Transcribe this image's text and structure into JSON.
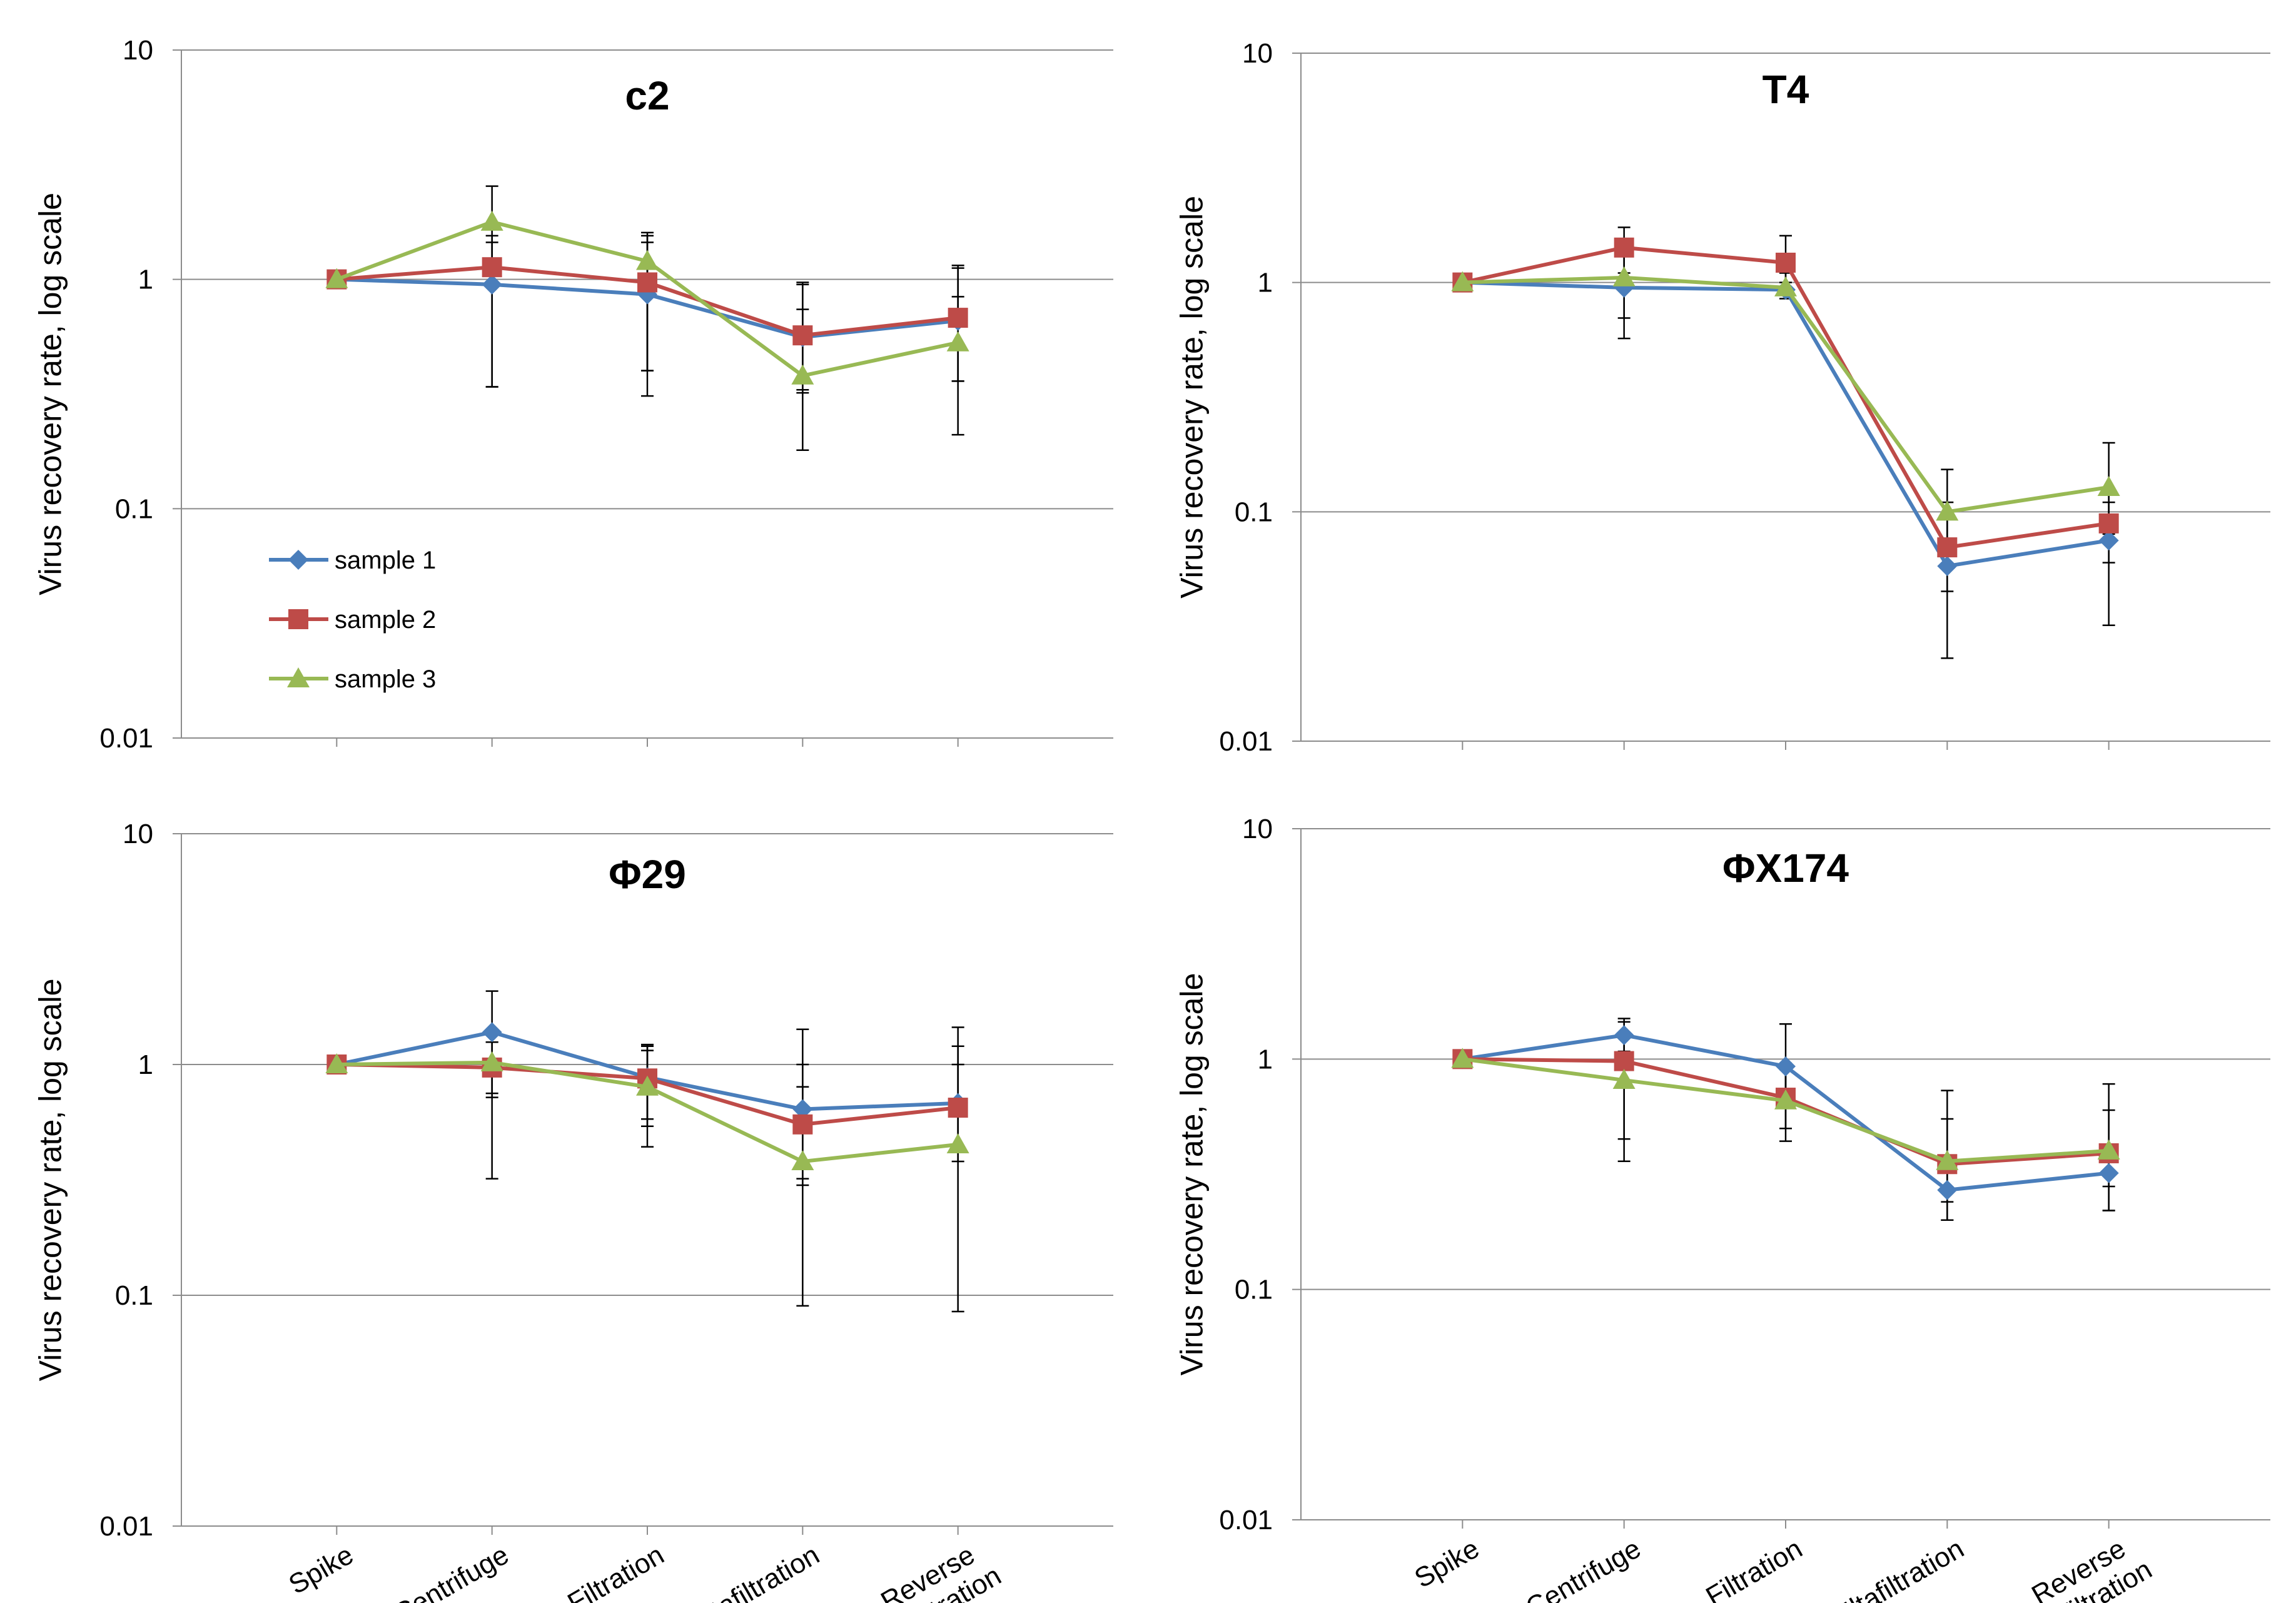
{
  "chart_data": [
    {
      "type": "line",
      "title": "c2",
      "ylabel": "Virus recovery rate, log scale",
      "yscale": "log",
      "ylim": [
        0.01,
        10
      ],
      "yticks": [
        "10",
        "1",
        "0.1",
        "0.01"
      ],
      "categories": [
        "Spike",
        "Centrifuge",
        "Filtration",
        "Ultafiltration",
        "Reverse filtration"
      ],
      "show_xtick_labels": false,
      "legend": "left",
      "series": [
        {
          "name": "sample 1",
          "values": [
            1.0,
            0.95,
            0.86,
            0.56,
            0.66
          ],
          "errors": [
            [
              1.0,
              1.0
            ],
            [
              0.34,
              1.45
            ],
            [
              0.4,
              1.45
            ],
            [
              0.32,
              0.95
            ],
            [
              0.36,
              1.12
            ]
          ]
        },
        {
          "name": "sample 2",
          "values": [
            1.0,
            1.13,
            0.97,
            0.57,
            0.68
          ],
          "errors": [
            [
              1.0,
              1.0
            ],
            [
              0.34,
              1.55
            ],
            [
              0.4,
              1.55
            ],
            [
              0.33,
              0.97
            ],
            [
              0.36,
              1.15
            ]
          ]
        },
        {
          "name": "sample 3",
          "values": [
            1.0,
            1.78,
            1.2,
            0.38,
            0.53
          ],
          "errors": [
            [
              1.0,
              1.0
            ],
            [
              1.05,
              2.55
            ],
            [
              0.31,
              1.6
            ],
            [
              0.18,
              0.74
            ],
            [
              0.21,
              0.84
            ]
          ]
        }
      ]
    },
    {
      "type": "line",
      "title": "T4",
      "ylabel": "Virus recovery rate, log scale",
      "yscale": "log",
      "ylim": [
        0.01,
        10
      ],
      "yticks": [
        "10",
        "1",
        "0.1",
        "0.01"
      ],
      "categories": [
        "Spike",
        "Centrifuge",
        "Filtration",
        "Ultafiltration",
        "Reverse filtration"
      ],
      "show_xtick_labels": false,
      "series": [
        {
          "name": "sample 1",
          "values": [
            1.0,
            0.95,
            0.93,
            0.058,
            0.075
          ],
          "errors": [
            [
              1.0,
              1.0
            ],
            [
              0.57,
              1.4
            ],
            [
              0.88,
              1.0
            ],
            [
              0.023,
              0.098
            ],
            [
              0.032,
              0.11
            ]
          ]
        },
        {
          "name": "sample 2",
          "values": [
            1.0,
            1.42,
            1.22,
            0.07,
            0.089
          ],
          "errors": [
            [
              1.0,
              1.0
            ],
            [
              1.1,
              1.74
            ],
            [
              0.95,
              1.6
            ],
            [
              0.045,
              0.11
            ],
            [
              0.06,
              0.12
            ]
          ]
        },
        {
          "name": "sample 3",
          "values": [
            1.0,
            1.05,
            0.95,
            0.1,
            0.128
          ],
          "errors": [
            [
              1.0,
              1.0
            ],
            [
              0.7,
              1.35
            ],
            [
              0.85,
              1.1
            ],
            [
              0.065,
              0.153
            ],
            [
              0.08,
              0.2
            ]
          ]
        }
      ]
    },
    {
      "type": "line",
      "title": "Φ29",
      "ylabel": "Virus recovery rate, log scale",
      "yscale": "log",
      "ylim": [
        0.01,
        10
      ],
      "yticks": [
        "10",
        "1",
        "0.1",
        "0.01"
      ],
      "categories": [
        "Spike",
        "Centrifuge",
        "Filtration",
        "Ultafiltration",
        "Reverse filtration"
      ],
      "show_xtick_labels": true,
      "series": [
        {
          "name": "sample 1",
          "values": [
            1.0,
            1.38,
            0.88,
            0.64,
            0.68
          ],
          "errors": [
            [
              1.0,
              1.0
            ],
            [
              0.75,
              2.08
            ],
            [
              0.58,
              1.2
            ],
            [
              0.32,
              1.42
            ],
            [
              0.42,
              1.45
            ]
          ]
        },
        {
          "name": "sample 2",
          "values": [
            1.0,
            0.97,
            0.87,
            0.55,
            0.65
          ],
          "errors": [
            [
              1.0,
              1.0
            ],
            [
              0.72,
              1.25
            ],
            [
              0.54,
              1.22
            ],
            [
              0.3,
              1.0
            ],
            [
              0.38,
              1.2
            ]
          ]
        },
        {
          "name": "sample 3",
          "values": [
            1.0,
            1.02,
            0.8,
            0.38,
            0.45
          ],
          "errors": [
            [
              1.0,
              1.0
            ],
            [
              0.32,
              1.25
            ],
            [
              0.44,
              1.15
            ],
            [
              0.09,
              0.8
            ],
            [
              0.085,
              1.0
            ]
          ]
        }
      ]
    },
    {
      "type": "line",
      "title": "ΦX174",
      "ylabel": "Virus recovery rate, log scale",
      "yscale": "log",
      "ylim": [
        0.01,
        10
      ],
      "yticks": [
        "10",
        "1",
        "0.1",
        "0.01"
      ],
      "categories": [
        "Spike",
        "Centrifuge",
        "Filtration",
        "Ultafiltration",
        "Reverse filtration"
      ],
      "show_xtick_labels": true,
      "series": [
        {
          "name": "sample 1",
          "values": [
            1.0,
            1.27,
            0.93,
            0.27,
            0.32
          ],
          "errors": [
            [
              1.0,
              1.0
            ],
            [
              1.08,
              1.5
            ],
            [
              0.62,
              1.42
            ],
            [
              0.2,
              0.35
            ],
            [
              0.22,
              0.42
            ]
          ]
        },
        {
          "name": "sample 2",
          "values": [
            1.0,
            0.98,
            0.68,
            0.35,
            0.39
          ],
          "errors": [
            [
              1.0,
              1.0
            ],
            [
              0.45,
              1.45
            ],
            [
              0.5,
              0.9
            ],
            [
              0.24,
              0.55
            ],
            [
              0.28,
              0.6
            ]
          ]
        },
        {
          "name": "sample 3",
          "values": [
            1.0,
            0.81,
            0.66,
            0.36,
            0.4
          ],
          "errors": [
            [
              1.0,
              1.0
            ],
            [
              0.36,
              1.28
            ],
            [
              0.44,
              0.96
            ],
            [
              0.2,
              0.73
            ],
            [
              0.22,
              0.78
            ]
          ]
        }
      ]
    }
  ],
  "series_colors": [
    "#4A7EBB",
    "#BE4B48",
    "#98B954"
  ],
  "series_markers": [
    "diamond",
    "square",
    "triangle"
  ]
}
